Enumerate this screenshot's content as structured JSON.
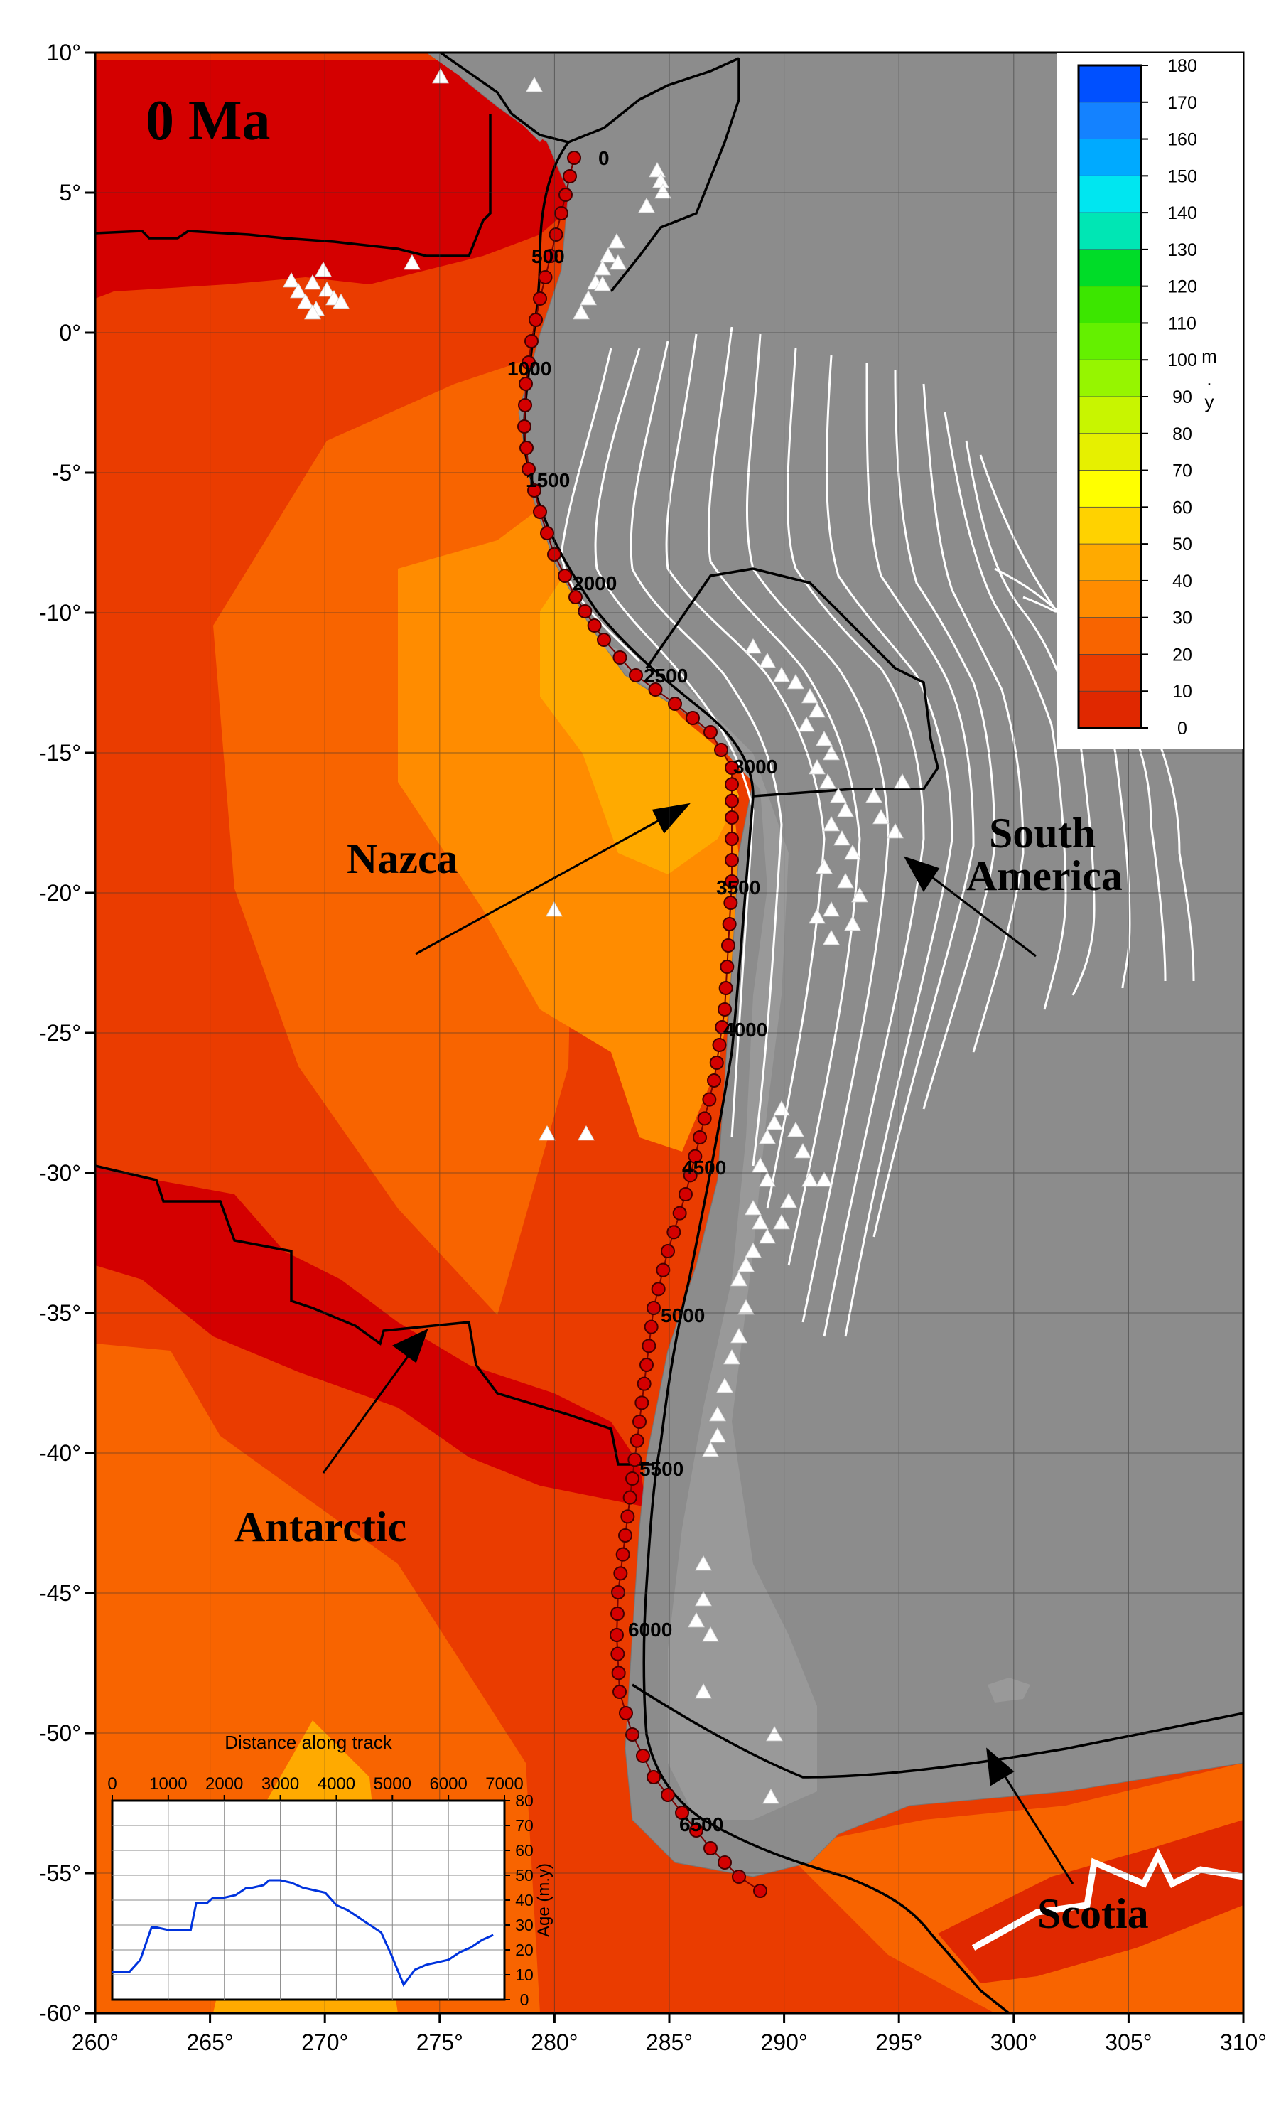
{
  "map": {
    "title": "0 Ma",
    "lon_range": [
      260,
      310
    ],
    "lat_range": [
      -60,
      10
    ],
    "lon_ticks": [
      "260°",
      "265°",
      "270°",
      "275°",
      "280°",
      "285°",
      "290°",
      "295°",
      "300°",
      "305°",
      "310°"
    ],
    "lat_ticks": [
      "10°",
      "5°",
      "0°",
      "-5°",
      "-10°",
      "-15°",
      "-20°",
      "-25°",
      "-30°",
      "-35°",
      "-40°",
      "-45°",
      "-50°",
      "-55°",
      "-60°"
    ],
    "plate_labels": {
      "nazca": "Nazca",
      "south_america_1": "South",
      "south_america_2": "America",
      "antarctic": "Antarctic",
      "scotia": "Scotia"
    },
    "track_labels": [
      "0",
      "500",
      "1000",
      "1500",
      "2000",
      "2500",
      "3000",
      "3500",
      "4000",
      "4500",
      "5000",
      "5500",
      "6000",
      "6500"
    ],
    "colors": {
      "land": "#8c8c8c",
      "age_0_10": "#d40000",
      "age_10_20": "#e02800",
      "age_20_30": "#ea3c00",
      "age_30_40": "#f86400",
      "age_40_50": "#ff8c00",
      "age_50_60": "#ffaa00",
      "age_60_70": "#ffd200",
      "age_110_120": "#5af000",
      "age_120_130": "#2ee000",
      "track": "#d40000"
    }
  },
  "colorbar": {
    "unit_1": "m",
    "unit_2": ".",
    "unit_3": "y",
    "ticks": [
      "180",
      "170",
      "160",
      "150",
      "140",
      "130",
      "120",
      "110",
      "100",
      "90",
      "80",
      "70",
      "60",
      "50",
      "40",
      "30",
      "20",
      "10",
      "0"
    ],
    "colors": [
      "#0050ff",
      "#1482ff",
      "#00aaff",
      "#00e6f0",
      "#00e6b4",
      "#00dc28",
      "#3ce600",
      "#64f000",
      "#96f500",
      "#c8f500",
      "#e6f000",
      "#ffff00",
      "#ffd200",
      "#ffaa00",
      "#ff8c00",
      "#f86400",
      "#ea3c00",
      "#e02800",
      "#d40000"
    ]
  },
  "inset": {
    "title": "Distance along track",
    "x_ticks": [
      "0",
      "1000",
      "2000",
      "3000",
      "4000",
      "5000",
      "6000",
      "7000"
    ],
    "y_ticks": [
      "80",
      "70",
      "60",
      "50",
      "40",
      "30",
      "20",
      "10",
      "0"
    ],
    "ylabel": "Age (m.y)",
    "line_color": "#0033dd"
  },
  "chart_data": {
    "type": "line",
    "title": "Distance along track",
    "xlabel": "",
    "ylabel": "Age (m.y)",
    "xlim": [
      0,
      7000
    ],
    "ylim": [
      0,
      80
    ],
    "series": [
      {
        "x": [
          0,
          150,
          300,
          500,
          700,
          800,
          1000,
          1200,
          1400,
          1500,
          1700,
          1800,
          2000,
          2200,
          2400,
          2500,
          2700,
          2800,
          3000,
          3200,
          3400,
          3600,
          3800,
          4000,
          4200,
          4400,
          4600,
          4800,
          5000,
          5200,
          5400,
          5600,
          5800,
          6000,
          6200,
          6400,
          6600,
          6800
        ],
        "y": [
          11,
          11,
          11,
          16,
          29,
          29,
          28,
          28,
          28,
          39,
          39,
          41,
          41,
          42,
          45,
          45,
          46,
          48,
          48,
          47,
          45,
          44,
          43,
          38,
          36,
          33,
          30,
          27,
          17,
          6,
          12,
          14,
          15,
          16,
          19,
          21,
          24,
          26
        ]
      }
    ]
  }
}
